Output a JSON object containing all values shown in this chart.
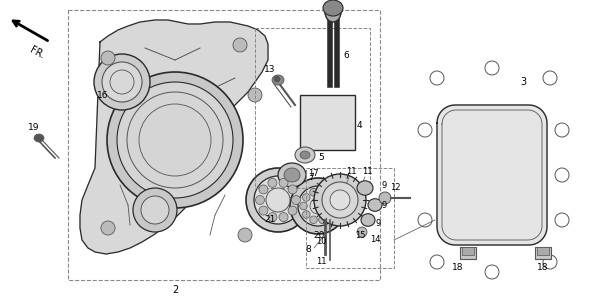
{
  "bg_color": "#ffffff",
  "lc": "#2a2a2a",
  "dg": "#555555",
  "lg": "#aaaaaa",
  "fill_housing": "#e0e0e0",
  "fill_cover": "#e8e8e8",
  "fill_light": "#f0f0f0",
  "box_border": "#888888"
}
